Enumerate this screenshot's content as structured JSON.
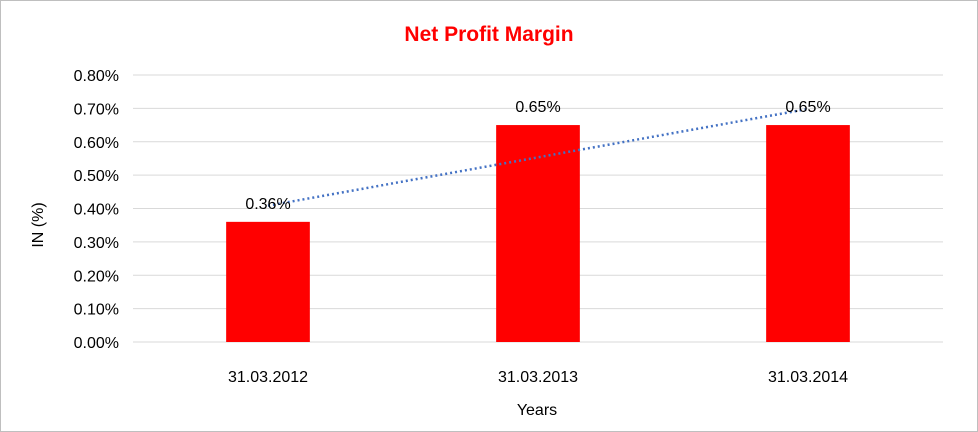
{
  "chart_data": {
    "type": "bar",
    "title": "Net Profit Margin",
    "xlabel": "Years",
    "ylabel": "IN (%)",
    "categories": [
      "31.03.2012",
      "31.03.2013",
      "31.03.2014"
    ],
    "values": [
      0.36,
      0.65,
      0.65
    ],
    "value_labels": [
      "0.36%",
      "0.65%",
      "0.65%"
    ],
    "ylim": [
      0,
      0.8
    ],
    "y_ticks": [
      0,
      0.1,
      0.2,
      0.3,
      0.4,
      0.5,
      0.6,
      0.7,
      0.8
    ],
    "y_tick_labels": [
      "0.00%",
      "0.10%",
      "0.20%",
      "0.30%",
      "0.40%",
      "0.50%",
      "0.60%",
      "0.70%",
      "0.80%"
    ],
    "trendline": {
      "type": "linear",
      "style": "dotted"
    },
    "grid": true,
    "legend": "none",
    "colors": {
      "bar": "#ff0000",
      "title": "#ff0000",
      "trendline": "#4472c4",
      "grid": "#d9d9d9"
    }
  }
}
